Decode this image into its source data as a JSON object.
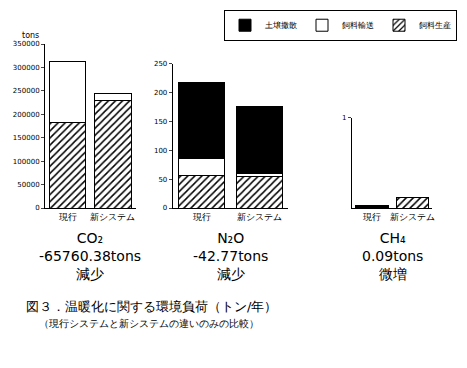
{
  "figure": {
    "title": "図３．温暖化に関する環境負荷（トン/年）",
    "subtitle": "（現行システムと新システムの違いのみの比較）"
  },
  "chart_data": [
    {
      "type": "bar",
      "stacked": true,
      "legend": "top right",
      "ylabel": "tons",
      "categories": [
        "現行",
        "新システム"
      ],
      "series": [
        {
          "name": "飼料生産",
          "color": "#ffffff",
          "marker": "hatch",
          "values": [
            183000,
            230000
          ]
        },
        {
          "name": "飼料輸送",
          "color": "#ffffff",
          "marker": "solid",
          "values": [
            129000,
            15000
          ]
        },
        {
          "name": "土壌撒散",
          "color": "#000000",
          "marker": "solid",
          "values": [
            0,
            0
          ]
        }
      ],
      "ylim": [
        0,
        350000
      ],
      "yticks": [
        0,
        50000,
        100000,
        150000,
        200000,
        250000,
        300000,
        350000
      ],
      "annotations": [
        "CO₂",
        "-65760.38tons",
        "減少"
      ]
    },
    {
      "type": "bar",
      "stacked": true,
      "categories": [
        "現行",
        "新システム"
      ],
      "series": [
        {
          "name": "飼料生産",
          "color": "#ffffff",
          "marker": "hatch",
          "values": [
            57,
            55
          ]
        },
        {
          "name": "飼料輸送",
          "color": "#ffffff",
          "marker": "solid",
          "values": [
            28,
            5
          ]
        },
        {
          "name": "土壌撒散",
          "color": "#000000",
          "marker": "solid",
          "values": [
            133,
            115
          ]
        }
      ],
      "ylim": [
        0,
        250
      ],
      "yticks": [
        0,
        50,
        100,
        150,
        200,
        250
      ],
      "annotations": [
        "N₂O",
        "-42.77tons",
        "減少"
      ]
    },
    {
      "type": "bar",
      "stacked": true,
      "categories": [
        "現行",
        "新システム"
      ],
      "series": [
        {
          "name": "飼料生産",
          "color": "#ffffff",
          "marker": "hatch",
          "values": [
            0,
            0.12
          ]
        },
        {
          "name": "飼料輸送",
          "color": "#ffffff",
          "marker": "solid",
          "values": [
            0,
            0
          ]
        },
        {
          "name": "土壌撒散",
          "color": "#000000",
          "marker": "solid",
          "values": [
            0.03,
            0
          ]
        }
      ],
      "ylim": [
        0,
        1
      ],
      "yticks": [
        1
      ],
      "annotations": [
        "CH₄",
        "0.09tons",
        "微増"
      ]
    }
  ]
}
